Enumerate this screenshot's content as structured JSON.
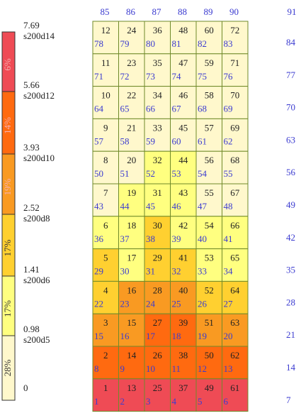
{
  "column_headers": [
    "85",
    "86",
    "87",
    "88",
    "89",
    "90",
    "91"
  ],
  "legend": [
    {
      "value": "7.69",
      "code": "s200d14",
      "percent": "6%",
      "color": "#ef4b55"
    },
    {
      "value": "5.66",
      "code": "s200d12",
      "percent": "14%",
      "color": "#ff6a10"
    },
    {
      "value": "3.93",
      "code": "s200d10",
      "percent": "19%",
      "color": "#f99a22"
    },
    {
      "value": "2.52",
      "code": "s200d8",
      "percent": "17%",
      "color": "#ffd030"
    },
    {
      "value": "1.41",
      "code": "s200d6",
      "percent": "17%",
      "color": "#ffff80"
    },
    {
      "value": "0.98",
      "code": "s200d5",
      "percent": "28%",
      "color": "#fff8cc"
    }
  ],
  "legend_floor": "0",
  "rows": [
    {
      "right": "84",
      "cells": [
        {
          "top": "12",
          "bottom": "78",
          "color": "#fff8cc"
        },
        {
          "top": "24",
          "bottom": "79",
          "color": "#fff8cc"
        },
        {
          "top": "36",
          "bottom": "80",
          "color": "#fff8cc"
        },
        {
          "top": "48",
          "bottom": "81",
          "color": "#fff8cc"
        },
        {
          "top": "60",
          "bottom": "82",
          "color": "#fff8cc"
        },
        {
          "top": "72",
          "bottom": "83",
          "color": "#fff8cc"
        }
      ]
    },
    {
      "right": "77",
      "cells": [
        {
          "top": "11",
          "bottom": "71",
          "color": "#fff8cc"
        },
        {
          "top": "23",
          "bottom": "72",
          "color": "#fff8cc"
        },
        {
          "top": "35",
          "bottom": "73",
          "color": "#fff8cc"
        },
        {
          "top": "47",
          "bottom": "74",
          "color": "#fff8cc"
        },
        {
          "top": "59",
          "bottom": "75",
          "color": "#fff8cc"
        },
        {
          "top": "71",
          "bottom": "76",
          "color": "#fff8cc"
        }
      ]
    },
    {
      "right": "70",
      "cells": [
        {
          "top": "10",
          "bottom": "64",
          "color": "#fff8cc"
        },
        {
          "top": "22",
          "bottom": "65",
          "color": "#fff8cc"
        },
        {
          "top": "34",
          "bottom": "66",
          "color": "#fff8cc"
        },
        {
          "top": "46",
          "bottom": "67",
          "color": "#fff8cc"
        },
        {
          "top": "58",
          "bottom": "68",
          "color": "#fff8cc"
        },
        {
          "top": "70",
          "bottom": "69",
          "color": "#fff8cc"
        }
      ]
    },
    {
      "right": "63",
      "cells": [
        {
          "top": "9",
          "bottom": "57",
          "color": "#fff8cc"
        },
        {
          "top": "21",
          "bottom": "58",
          "color": "#fff8cc"
        },
        {
          "top": "33",
          "bottom": "59",
          "color": "#fff8cc"
        },
        {
          "top": "45",
          "bottom": "60",
          "color": "#fff8cc"
        },
        {
          "top": "57",
          "bottom": "61",
          "color": "#fff8cc"
        },
        {
          "top": "69",
          "bottom": "62",
          "color": "#fff8cc"
        }
      ]
    },
    {
      "right": "56",
      "cells": [
        {
          "top": "8",
          "bottom": "50",
          "color": "#fff8cc"
        },
        {
          "top": "20",
          "bottom": "51",
          "color": "#fff8cc"
        },
        {
          "top": "32",
          "bottom": "52",
          "color": "#ffff80"
        },
        {
          "top": "44",
          "bottom": "53",
          "color": "#ffff80"
        },
        {
          "top": "56",
          "bottom": "54",
          "color": "#fff8cc"
        },
        {
          "top": "68",
          "bottom": "55",
          "color": "#fff8cc"
        }
      ]
    },
    {
      "right": "49",
      "cells": [
        {
          "top": "7",
          "bottom": "43",
          "color": "#fff8cc"
        },
        {
          "top": "19",
          "bottom": "44",
          "color": "#ffff80"
        },
        {
          "top": "31",
          "bottom": "45",
          "color": "#ffff80"
        },
        {
          "top": "43",
          "bottom": "46",
          "color": "#ffff80"
        },
        {
          "top": "55",
          "bottom": "47",
          "color": "#fff8cc"
        },
        {
          "top": "67",
          "bottom": "48",
          "color": "#fff8cc"
        }
      ]
    },
    {
      "right": "42",
      "cells": [
        {
          "top": "6",
          "bottom": "36",
          "color": "#ffff80"
        },
        {
          "top": "18",
          "bottom": "37",
          "color": "#ffff80"
        },
        {
          "top": "30",
          "bottom": "38",
          "color": "#ffd030"
        },
        {
          "top": "42",
          "bottom": "39",
          "color": "#ffff80"
        },
        {
          "top": "54",
          "bottom": "40",
          "color": "#ffff80"
        },
        {
          "top": "66",
          "bottom": "41",
          "color": "#ffff80"
        }
      ]
    },
    {
      "right": "35",
      "cells": [
        {
          "top": "5",
          "bottom": "29",
          "color": "#ffd030"
        },
        {
          "top": "17",
          "bottom": "30",
          "color": "#ffff80"
        },
        {
          "top": "29",
          "bottom": "31",
          "color": "#ffd030"
        },
        {
          "top": "41",
          "bottom": "32",
          "color": "#ffd030"
        },
        {
          "top": "53",
          "bottom": "33",
          "color": "#ffff80"
        },
        {
          "top": "65",
          "bottom": "34",
          "color": "#ffff80"
        }
      ]
    },
    {
      "right": "28",
      "cells": [
        {
          "top": "4",
          "bottom": "22",
          "color": "#ffd030"
        },
        {
          "top": "16",
          "bottom": "23",
          "color": "#f99a22"
        },
        {
          "top": "28",
          "bottom": "24",
          "color": "#f99a22"
        },
        {
          "top": "40",
          "bottom": "25",
          "color": "#f99a22"
        },
        {
          "top": "52",
          "bottom": "26",
          "color": "#ffd030"
        },
        {
          "top": "64",
          "bottom": "27",
          "color": "#ffd030"
        }
      ]
    },
    {
      "right": "21",
      "cells": [
        {
          "top": "3",
          "bottom": "15",
          "color": "#f99a22"
        },
        {
          "top": "15",
          "bottom": "16",
          "color": "#f99a22"
        },
        {
          "top": "27",
          "bottom": "17",
          "color": "#ff6a10"
        },
        {
          "top": "39",
          "bottom": "18",
          "color": "#ff6a10"
        },
        {
          "top": "51",
          "bottom": "19",
          "color": "#f99a22"
        },
        {
          "top": "63",
          "bottom": "20",
          "color": "#f99a22"
        }
      ]
    },
    {
      "right": "14",
      "cells": [
        {
          "top": "2",
          "bottom": "8",
          "color": "#ff6a10"
        },
        {
          "top": "14",
          "bottom": "9",
          "color": "#ff6a10"
        },
        {
          "top": "26",
          "bottom": "10",
          "color": "#ff6a10"
        },
        {
          "top": "38",
          "bottom": "11",
          "color": "#ff6a10"
        },
        {
          "top": "50",
          "bottom": "12",
          "color": "#ff6a10"
        },
        {
          "top": "62",
          "bottom": "13",
          "color": "#ff6a10"
        }
      ]
    },
    {
      "right": "7",
      "cells": [
        {
          "top": "1",
          "bottom": "1",
          "color": "#ef4b55"
        },
        {
          "top": "13",
          "bottom": "2",
          "color": "#ef4b55"
        },
        {
          "top": "25",
          "bottom": "3",
          "color": "#ef4b55"
        },
        {
          "top": "37",
          "bottom": "4",
          "color": "#ef4b55"
        },
        {
          "top": "49",
          "bottom": "5",
          "color": "#ef4b55"
        },
        {
          "top": "61",
          "bottom": "6",
          "color": "#ef4b55"
        }
      ]
    }
  ]
}
